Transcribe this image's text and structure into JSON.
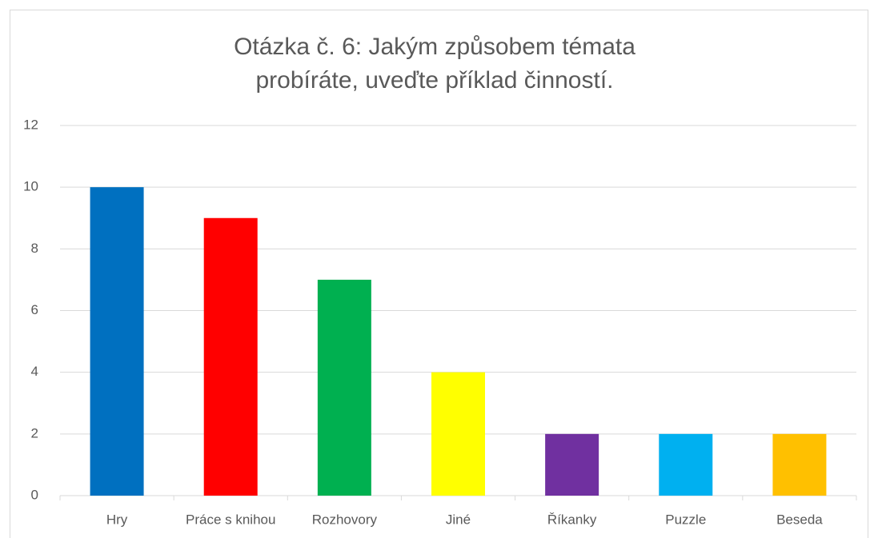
{
  "chart_data": {
    "type": "bar",
    "title": "Otázka č. 6: Jakým způsobem témata probíráte, uveďte příklad činností.",
    "categories": [
      "Hry",
      "Práce s knihou",
      "Rozhovory",
      "Jiné",
      "Říkanky",
      "Puzzle",
      "Beseda"
    ],
    "values": [
      10,
      9,
      7,
      4,
      2,
      2,
      2
    ],
    "colors": [
      "#0070c0",
      "#ff0000",
      "#00b050",
      "#ffff00",
      "#7030a0",
      "#00b0f0",
      "#ffc000"
    ],
    "ylim": [
      0,
      12
    ],
    "yticks": [
      0,
      2,
      4,
      6,
      8,
      10,
      12
    ],
    "grid": true
  }
}
